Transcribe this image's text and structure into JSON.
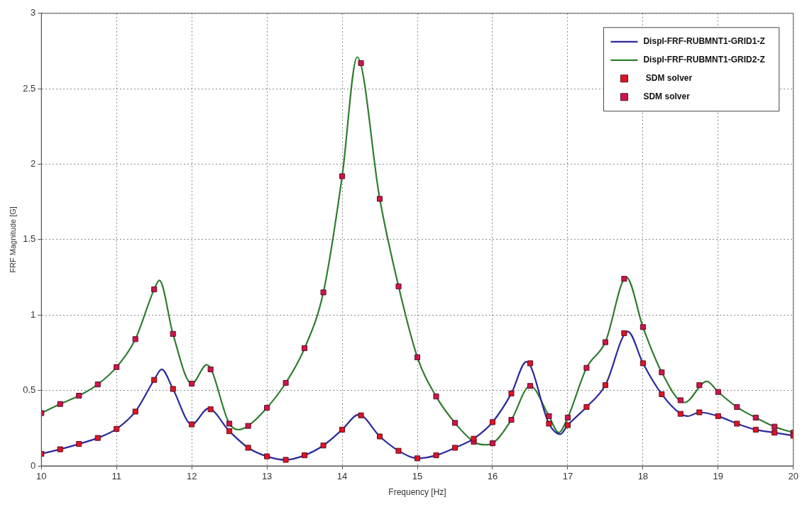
{
  "chart_data": {
    "type": "line",
    "xlabel": "Frequency [Hz]",
    "ylabel": "FRF Magnitude [G]",
    "xlim": [
      10,
      20
    ],
    "ylim": [
      0,
      3
    ],
    "xticks": [
      10,
      11,
      12,
      13,
      14,
      15,
      16,
      17,
      18,
      19,
      20
    ],
    "yticks": [
      0,
      0.5,
      1,
      1.5,
      2,
      2.5,
      3
    ],
    "grid": true,
    "legend": "top right",
    "series": [
      {
        "name": "Displ-FRF-RUBMNT1-GRID1-Z",
        "color": "#2a2a9c",
        "marker": "none",
        "x": [
          10,
          10.25,
          10.5,
          10.75,
          11,
          11.25,
          11.5,
          11.6,
          11.75,
          12,
          12.22,
          12.5,
          12.75,
          13,
          13.25,
          13.5,
          13.75,
          14,
          14.22,
          14.5,
          14.75,
          15,
          15.25,
          15.5,
          15.75,
          16,
          16.25,
          16.45,
          16.75,
          16.9,
          17,
          17.25,
          17.5,
          17.8,
          18,
          18.25,
          18.5,
          18.6,
          18.75,
          19,
          19.25,
          19.5,
          19.75,
          20
        ],
        "values": [
          0.08,
          0.11,
          0.145,
          0.185,
          0.245,
          0.36,
          0.57,
          0.64,
          0.51,
          0.275,
          0.38,
          0.23,
          0.12,
          0.063,
          0.04,
          0.07,
          0.135,
          0.24,
          0.34,
          0.195,
          0.1,
          0.05,
          0.07,
          0.12,
          0.18,
          0.29,
          0.48,
          0.69,
          0.28,
          0.21,
          0.27,
          0.39,
          0.535,
          0.89,
          0.68,
          0.475,
          0.345,
          0.33,
          0.355,
          0.33,
          0.28,
          0.24,
          0.22,
          0.2
        ]
      },
      {
        "name": "Displ-FRF-RUBMNT1-GRID2-Z",
        "color": "#2f7d2f",
        "marker": "none",
        "x": [
          10,
          10.25,
          10.5,
          10.75,
          11,
          11.25,
          11.5,
          11.57,
          11.75,
          12,
          12.2,
          12.5,
          12.62,
          12.75,
          13,
          13.25,
          13.5,
          13.75,
          14,
          14.2,
          14.5,
          14.75,
          15,
          15.25,
          15.5,
          15.75,
          15.9,
          16,
          16.25,
          16.5,
          16.75,
          16.88,
          17,
          17.25,
          17.5,
          17.78,
          18,
          18.25,
          18.55,
          18.85,
          19,
          19.25,
          19.5,
          19.75,
          20
        ],
        "values": [
          0.35,
          0.41,
          0.465,
          0.54,
          0.655,
          0.84,
          1.17,
          1.23,
          0.875,
          0.545,
          0.67,
          0.28,
          0.24,
          0.265,
          0.385,
          0.55,
          0.78,
          1.15,
          1.92,
          2.71,
          1.77,
          1.19,
          0.72,
          0.46,
          0.285,
          0.16,
          0.14,
          0.15,
          0.305,
          0.53,
          0.33,
          0.22,
          0.32,
          0.65,
          0.82,
          1.25,
          0.92,
          0.62,
          0.42,
          0.56,
          0.49,
          0.39,
          0.32,
          0.26,
          0.22
        ]
      },
      {
        "type": "scatter",
        "name": " SDM solver",
        "color": "#e01424",
        "marker": "square",
        "x": [
          10,
          10.25,
          10.5,
          10.75,
          11,
          11.25,
          11.5,
          11.75,
          12,
          12.25,
          12.5,
          12.75,
          13,
          13.25,
          13.5,
          13.75,
          14,
          14.25,
          14.5,
          14.75,
          15,
          15.25,
          15.5,
          15.75,
          16,
          16.25,
          16.5,
          16.75,
          17,
          17.25,
          17.5,
          17.75,
          18,
          18.25,
          18.5,
          18.75,
          19,
          19.25,
          19.5,
          19.75,
          20
        ],
        "values": [
          0.08,
          0.11,
          0.145,
          0.185,
          0.245,
          0.36,
          0.57,
          0.51,
          0.275,
          0.375,
          0.23,
          0.12,
          0.063,
          0.04,
          0.07,
          0.135,
          0.24,
          0.335,
          0.195,
          0.1,
          0.05,
          0.07,
          0.12,
          0.18,
          0.29,
          0.48,
          0.68,
          0.28,
          0.27,
          0.39,
          0.535,
          0.88,
          0.68,
          0.475,
          0.345,
          0.355,
          0.33,
          0.28,
          0.24,
          0.22,
          0.2
        ]
      },
      {
        "type": "scatter",
        "name": "SDM solver",
        "color": "#d0144c",
        "marker": "square",
        "x": [
          10,
          10.25,
          10.5,
          10.75,
          11,
          11.25,
          11.5,
          11.75,
          12,
          12.25,
          12.5,
          12.75,
          13,
          13.25,
          13.5,
          13.75,
          14,
          14.25,
          14.5,
          14.75,
          15,
          15.25,
          15.5,
          15.75,
          16,
          16.25,
          16.5,
          16.75,
          17,
          17.25,
          17.5,
          17.75,
          18,
          18.25,
          18.5,
          18.75,
          19,
          19.25,
          19.5,
          19.75,
          20
        ],
        "values": [
          0.35,
          0.41,
          0.465,
          0.54,
          0.655,
          0.84,
          1.17,
          0.875,
          0.545,
          0.64,
          0.28,
          0.265,
          0.385,
          0.55,
          0.78,
          1.15,
          1.92,
          2.67,
          1.77,
          1.19,
          0.72,
          0.46,
          0.285,
          0.16,
          0.15,
          0.305,
          0.53,
          0.33,
          0.32,
          0.65,
          0.82,
          1.24,
          0.92,
          0.62,
          0.435,
          0.535,
          0.49,
          0.39,
          0.32,
          0.26,
          0.22
        ]
      }
    ]
  }
}
